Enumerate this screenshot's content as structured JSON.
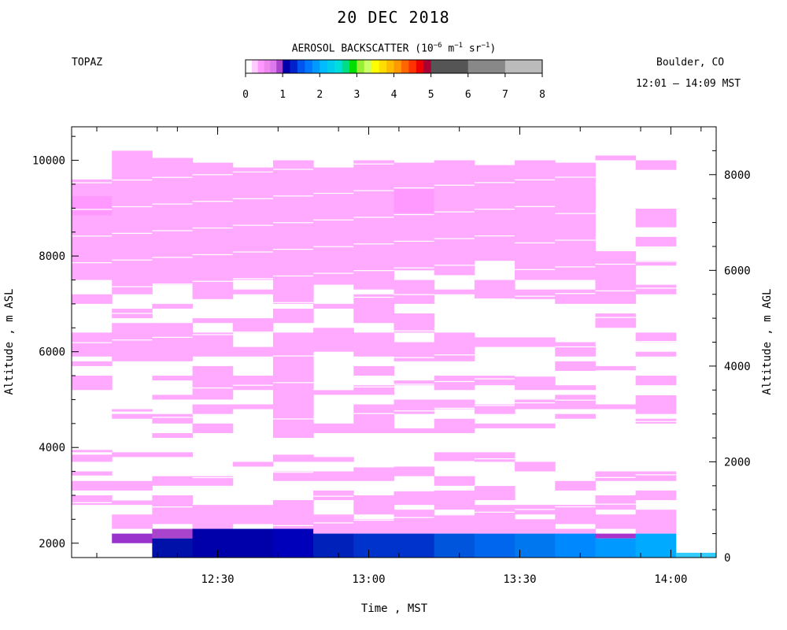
{
  "header": {
    "title": "20 DEC 2018",
    "site": "TOPAZ",
    "location": "Boulder, CO",
    "time_range": "12:01 – 14:09 MST"
  },
  "colorbar": {
    "title_prefix": "AEROSOL BACKSCATTER (10",
    "exp1": "−6",
    "unit_m": " m",
    "exp2": "−1",
    "unit_sr": " sr",
    "exp3": "−1",
    "title_suffix": ")",
    "ticks": [
      "0",
      "1",
      "2",
      "3",
      "4",
      "5",
      "6",
      "7",
      "8"
    ],
    "colors": [
      "#ffffff",
      "#ffccff",
      "#ff99ff",
      "#ee88ee",
      "#dd77ee",
      "#cc66dd",
      "#aa44cc",
      "#8822bb",
      "#0000aa",
      "#0022cc",
      "#0044dd",
      "#0066ee",
      "#0088ff",
      "#00aaff",
      "#00ccff",
      "#00dddd",
      "#00cc88",
      "#00dd00",
      "#88ee00",
      "#ccff44",
      "#ffff00",
      "#ffcc00",
      "#ff9900",
      "#ff6600",
      "#ff3300",
      "#ff0000",
      "#cc0000",
      "#990033",
      "#666666",
      "#888888",
      "#bbbbbb"
    ],
    "segments": [
      {
        "color": "#ffffff",
        "from": 0.0,
        "to": 0.167
      },
      {
        "color": "#ffccff",
        "from": 0.167,
        "to": 0.333
      },
      {
        "color": "#ff99ff",
        "from": 0.333,
        "to": 0.5
      },
      {
        "color": "#ee88ee",
        "from": 0.5,
        "to": 0.667
      },
      {
        "color": "#dd77ee",
        "from": 0.667,
        "to": 0.833
      },
      {
        "color": "#aa44cc",
        "from": 0.833,
        "to": 1.0
      },
      {
        "color": "#0000aa",
        "from": 1.0,
        "to": 1.2
      },
      {
        "color": "#0022cc",
        "from": 1.2,
        "to": 1.4
      },
      {
        "color": "#0055ee",
        "from": 1.4,
        "to": 1.6
      },
      {
        "color": "#0077ff",
        "from": 1.6,
        "to": 1.8
      },
      {
        "color": "#0099ff",
        "from": 1.8,
        "to": 2.0
      },
      {
        "color": "#00bbff",
        "from": 2.0,
        "to": 2.2
      },
      {
        "color": "#00ccee",
        "from": 2.2,
        "to": 2.4
      },
      {
        "color": "#00dddd",
        "from": 2.4,
        "to": 2.6
      },
      {
        "color": "#00dd88",
        "from": 2.6,
        "to": 2.8
      },
      {
        "color": "#00dd00",
        "from": 2.8,
        "to": 3.0
      },
      {
        "color": "#99ee33",
        "from": 3.0,
        "to": 3.2
      },
      {
        "color": "#ccff66",
        "from": 3.2,
        "to": 3.4
      },
      {
        "color": "#ffff00",
        "from": 3.4,
        "to": 3.6
      },
      {
        "color": "#ffdd00",
        "from": 3.6,
        "to": 3.8
      },
      {
        "color": "#ffbb00",
        "from": 3.8,
        "to": 4.0
      },
      {
        "color": "#ff9900",
        "from": 4.0,
        "to": 4.2
      },
      {
        "color": "#ff6600",
        "from": 4.2,
        "to": 4.4
      },
      {
        "color": "#ff3300",
        "from": 4.4,
        "to": 4.6
      },
      {
        "color": "#ee0000",
        "from": 4.6,
        "to": 4.8
      },
      {
        "color": "#aa0033",
        "from": 4.8,
        "to": 5.0
      },
      {
        "color": "#555555",
        "from": 5.0,
        "to": 6.0
      },
      {
        "color": "#888888",
        "from": 6.0,
        "to": 7.0
      },
      {
        "color": "#bbbbbb",
        "from": 7.0,
        "to": 8.0
      }
    ]
  },
  "chart_data": {
    "type": "heatmap",
    "xlabel": "Time , MST",
    "ylabel_left": "Altitude , m ASL",
    "ylabel_right": "Altitude , m AGL",
    "x_range_min": [
      12,
      121
    ],
    "y_left_range": [
      1700,
      10700
    ],
    "y_right_range": [
      0,
      9000
    ],
    "x_tick_labels": [
      {
        "t": 150,
        "label": "12:30"
      },
      {
        "t": 180,
        "label": "13:00"
      },
      {
        "t": 210,
        "label": "13:30"
      },
      {
        "t": 240,
        "label": "14:00"
      }
    ],
    "x_minor_ticks": [
      126,
      138,
      142,
      150,
      162,
      174,
      186,
      198,
      210,
      222,
      234,
      246
    ],
    "y_left_ticks": [
      2000,
      4000,
      6000,
      8000,
      10000
    ],
    "y_right_ticks": [
      0,
      2000,
      4000,
      6000,
      8000
    ],
    "columns": [
      {
        "t0": 121,
        "t1": 129,
        "top": 9600,
        "bands": [
          [
            9600,
            7500,
            "#ffaaff"
          ],
          [
            9250,
            8850,
            "#ff99ff"
          ],
          [
            7200,
            7000,
            "#ffaaff"
          ],
          [
            6400,
            5900,
            "#ffaaff"
          ],
          [
            5800,
            5700,
            "#ffaaff"
          ],
          [
            5500,
            5200,
            "#ffaaff"
          ],
          [
            3950,
            3900,
            "#ffaaff"
          ],
          [
            3850,
            3700,
            "#ffaaff"
          ],
          [
            3500,
            3400,
            "#ffaaff"
          ],
          [
            3300,
            3100,
            "#ffaaff"
          ],
          [
            3000,
            2800,
            "#ffaaff"
          ]
        ]
      },
      {
        "t0": 129,
        "t1": 137,
        "top": 10200,
        "bands": [
          [
            10200,
            7200,
            "#ffaaff"
          ],
          [
            6900,
            6700,
            "#ffaaff"
          ],
          [
            6600,
            5800,
            "#ffaaff"
          ],
          [
            4800,
            4750,
            "#ffaaff"
          ],
          [
            4700,
            4600,
            "#ffaaff"
          ],
          [
            3900,
            3800,
            "#ffaaff"
          ],
          [
            3300,
            3100,
            "#ffaaff"
          ],
          [
            2900,
            2800,
            "#ffaaff"
          ],
          [
            2600,
            2300,
            "#ffaaff"
          ],
          [
            2200,
            2000,
            "#9933cc"
          ]
        ]
      },
      {
        "t0": 137,
        "t1": 145,
        "top": 10050,
        "bands": [
          [
            10050,
            7400,
            "#ffaaff"
          ],
          [
            7000,
            6900,
            "#ffaaff"
          ],
          [
            6600,
            5800,
            "#ffaaff"
          ],
          [
            5500,
            5400,
            "#ffaaff"
          ],
          [
            5100,
            5000,
            "#ffaaff"
          ],
          [
            4700,
            4500,
            "#ffaaff"
          ],
          [
            4300,
            4200,
            "#ffaaff"
          ],
          [
            3900,
            3800,
            "#ffaaff"
          ],
          [
            3400,
            3200,
            "#ffaaff"
          ],
          [
            3000,
            2400,
            "#ffaaff"
          ],
          [
            2300,
            2100,
            "#aa44cc"
          ],
          [
            2100,
            1700,
            "#0011aa"
          ]
        ]
      },
      {
        "t0": 145,
        "t1": 153,
        "top": 9950,
        "bands": [
          [
            9950,
            7100,
            "#ffaaff"
          ],
          [
            6700,
            6600,
            "#ffaaff"
          ],
          [
            6400,
            5900,
            "#ffaaff"
          ],
          [
            5700,
            5000,
            "#ffaaff"
          ],
          [
            4900,
            4700,
            "#ffaaff"
          ],
          [
            4500,
            4300,
            "#ffaaff"
          ],
          [
            3400,
            3200,
            "#ffaaff"
          ],
          [
            2800,
            2300,
            "#ffaaff"
          ],
          [
            2300,
            1700,
            "#0000aa"
          ]
        ]
      },
      {
        "t0": 153,
        "t1": 161,
        "top": 9850,
        "bands": [
          [
            9850,
            7500,
            "#ffaaff"
          ],
          [
            7300,
            7200,
            "#ffaaff"
          ],
          [
            6700,
            6400,
            "#ffaaff"
          ],
          [
            6100,
            5900,
            "#ffaaff"
          ],
          [
            5500,
            5200,
            "#ffaaff"
          ],
          [
            4900,
            4800,
            "#ffaaff"
          ],
          [
            3700,
            3600,
            "#ffaaff"
          ],
          [
            2800,
            2400,
            "#ffaaff"
          ],
          [
            2300,
            1700,
            "#0000aa"
          ]
        ]
      },
      {
        "t0": 161,
        "t1": 169,
        "top": 10000,
        "bands": [
          [
            10000,
            7000,
            "#ffaaff"
          ],
          [
            6900,
            6600,
            "#ffaaff"
          ],
          [
            6400,
            4200,
            "#ffaaff"
          ],
          [
            3850,
            3700,
            "#ffaaff"
          ],
          [
            3500,
            3300,
            "#ffaaff"
          ],
          [
            2900,
            2300,
            "#ffaaff"
          ],
          [
            2300,
            1700,
            "#0000bb"
          ]
        ]
      },
      {
        "t0": 169,
        "t1": 177,
        "top": 9850,
        "bands": [
          [
            9850,
            7400,
            "#ffaaff"
          ],
          [
            7000,
            6900,
            "#ffaaff"
          ],
          [
            6500,
            6000,
            "#ffaaff"
          ],
          [
            5200,
            5100,
            "#ffaaff"
          ],
          [
            4500,
            4300,
            "#ffaaff"
          ],
          [
            3800,
            3700,
            "#ffaaff"
          ],
          [
            3500,
            3300,
            "#ffaaff"
          ],
          [
            3100,
            2900,
            "#ffaaff"
          ],
          [
            2600,
            2200,
            "#ffaaff"
          ],
          [
            2200,
            1700,
            "#0022bb"
          ]
        ]
      },
      {
        "t0": 177,
        "t1": 185,
        "top": 10000,
        "bands": [
          [
            10000,
            7300,
            "#ffaaff"
          ],
          [
            7200,
            6600,
            "#ffaaff"
          ],
          [
            6400,
            5900,
            "#ffaaff"
          ],
          [
            5700,
            5500,
            "#ffaaff"
          ],
          [
            5300,
            5100,
            "#ffaaff"
          ],
          [
            4900,
            4300,
            "#ffaaff"
          ],
          [
            3600,
            3300,
            "#ffaaff"
          ],
          [
            3000,
            2600,
            "#ffaaff"
          ],
          [
            2500,
            2200,
            "#ffaaff"
          ],
          [
            2200,
            1700,
            "#0033cc"
          ]
        ]
      },
      {
        "t0": 185,
        "t1": 193,
        "top": 9950,
        "bands": [
          [
            9950,
            7700,
            "#ffaaff"
          ],
          [
            9400,
            8900,
            "#ff99ff"
          ],
          [
            7500,
            7000,
            "#ffaaff"
          ],
          [
            6800,
            6400,
            "#ffaaff"
          ],
          [
            6200,
            5800,
            "#ffaaff"
          ],
          [
            5400,
            5300,
            "#ffaaff"
          ],
          [
            5000,
            4700,
            "#ffaaff"
          ],
          [
            4400,
            4300,
            "#ffaaff"
          ],
          [
            3600,
            3400,
            "#ffaaff"
          ],
          [
            3100,
            2800,
            "#ffaaff"
          ],
          [
            2700,
            2200,
            "#ffaaff"
          ],
          [
            2200,
            1700,
            "#0033cc"
          ]
        ]
      },
      {
        "t0": 193,
        "t1": 201,
        "top": 10000,
        "bands": [
          [
            10000,
            7600,
            "#ffaaff"
          ],
          [
            7300,
            7200,
            "#ffaaff"
          ],
          [
            6400,
            5800,
            "#ffaaff"
          ],
          [
            5500,
            5200,
            "#ffaaff"
          ],
          [
            5000,
            4800,
            "#ffaaff"
          ],
          [
            4600,
            4300,
            "#ffaaff"
          ],
          [
            3900,
            3700,
            "#ffaaff"
          ],
          [
            3400,
            3200,
            "#ffaaff"
          ],
          [
            3100,
            2700,
            "#ffaaff"
          ],
          [
            2600,
            2200,
            "#ffaaff"
          ],
          [
            2200,
            1700,
            "#0055dd"
          ]
        ]
      },
      {
        "t0": 201,
        "t1": 209,
        "top": 9900,
        "bands": [
          [
            9900,
            7900,
            "#ffaaff"
          ],
          [
            7500,
            7100,
            "#ffaaff"
          ],
          [
            6300,
            6100,
            "#ffaaff"
          ],
          [
            5500,
            5300,
            "#ffaaff"
          ],
          [
            4900,
            4700,
            "#ffaaff"
          ],
          [
            4500,
            4400,
            "#ffaaff"
          ],
          [
            3900,
            3700,
            "#ffaaff"
          ],
          [
            3200,
            2900,
            "#ffaaff"
          ],
          [
            2800,
            2200,
            "#ffaaff"
          ],
          [
            2200,
            1700,
            "#0066ee"
          ]
        ]
      },
      {
        "t0": 209,
        "t1": 217,
        "top": 10000,
        "bands": [
          [
            10000,
            7500,
            "#ffaaff"
          ],
          [
            7300,
            7100,
            "#ffaaff"
          ],
          [
            6300,
            6100,
            "#ffaaff"
          ],
          [
            5500,
            5200,
            "#ffaaff"
          ],
          [
            5000,
            4800,
            "#ffaaff"
          ],
          [
            4500,
            4400,
            "#ffaaff"
          ],
          [
            3700,
            3500,
            "#ffaaff"
          ],
          [
            2800,
            2600,
            "#ffaaff"
          ],
          [
            2500,
            2200,
            "#ffaaff"
          ],
          [
            2200,
            1700,
            "#0077ee"
          ]
        ]
      },
      {
        "t0": 217,
        "t1": 225,
        "top": 9950,
        "bands": [
          [
            9950,
            7500,
            "#ffaaff"
          ],
          [
            7300,
            7000,
            "#ffaaff"
          ],
          [
            6200,
            5900,
            "#ffaaff"
          ],
          [
            5800,
            5600,
            "#ffaaff"
          ],
          [
            5300,
            5200,
            "#ffaaff"
          ],
          [
            5100,
            4800,
            "#ffaaff"
          ],
          [
            4700,
            4600,
            "#ffaaff"
          ],
          [
            3300,
            3100,
            "#ffaaff"
          ],
          [
            2800,
            2400,
            "#ffaaff"
          ],
          [
            2300,
            2200,
            "#ffaaff"
          ],
          [
            2200,
            1700,
            "#0088ff"
          ]
        ]
      },
      {
        "t0": 225,
        "t1": 233,
        "top": 10100,
        "bands": [
          [
            10100,
            10000,
            "#ffaaff"
          ],
          [
            8100,
            7000,
            "#ffaaff"
          ],
          [
            6800,
            6500,
            "#ffaaff"
          ],
          [
            5700,
            5600,
            "#ffaaff"
          ],
          [
            4900,
            4800,
            "#ffaaff"
          ],
          [
            3500,
            3300,
            "#ffaaff"
          ],
          [
            3000,
            2700,
            "#ffaaff"
          ],
          [
            2600,
            2300,
            "#ffaaff"
          ],
          [
            2200,
            2100,
            "#aa33cc"
          ],
          [
            2100,
            1700,
            "#0099ff"
          ]
        ]
      },
      {
        "t0": 233,
        "t1": 241,
        "top": 10000,
        "bands": [
          [
            10000,
            9800,
            "#ffaaff"
          ],
          [
            9000,
            8600,
            "#ffaaff"
          ],
          [
            8400,
            8200,
            "#ffaaff"
          ],
          [
            7900,
            7800,
            "#ffaaff"
          ],
          [
            7400,
            7200,
            "#ffaaff"
          ],
          [
            6400,
            6200,
            "#ffaaff"
          ],
          [
            6000,
            5900,
            "#ffaaff"
          ],
          [
            5500,
            5300,
            "#ffaaff"
          ],
          [
            5100,
            4700,
            "#ffaaff"
          ],
          [
            4600,
            4500,
            "#ffaaff"
          ],
          [
            3500,
            3300,
            "#ffaaff"
          ],
          [
            3100,
            2900,
            "#ffaaff"
          ],
          [
            2700,
            2200,
            "#ffaaff"
          ],
          [
            2200,
            1700,
            "#00aaff"
          ]
        ]
      },
      {
        "t0": 241,
        "t1": 249,
        "top": 1800,
        "bands": [
          [
            1800,
            1700,
            "#33ccff"
          ]
        ]
      }
    ]
  }
}
